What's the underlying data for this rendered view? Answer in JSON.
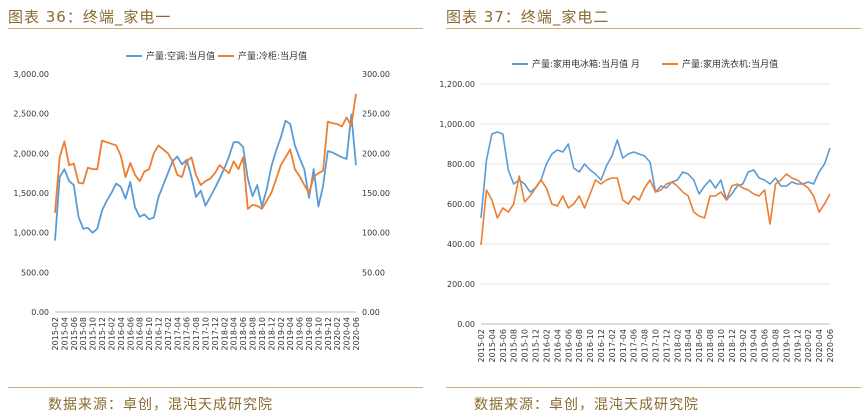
{
  "left": {
    "caption": "图表 36：终端_家电一",
    "source": "数据来源：卓创，混沌天成研究院",
    "chart_data": {
      "type": "line",
      "x": [
        "2015-02",
        "2015-03",
        "2015-04",
        "2015-05",
        "2015-06",
        "2015-07",
        "2015-08",
        "2015-09",
        "2015-10",
        "2015-11",
        "2015-12",
        "2016-01",
        "2016-02",
        "2016-03",
        "2016-04",
        "2016-05",
        "2016-06",
        "2016-07",
        "2016-08",
        "2016-09",
        "2016-10",
        "2016-11",
        "2016-12",
        "2017-01",
        "2017-02",
        "2017-03",
        "2017-04",
        "2017-05",
        "2017-06",
        "2017-07",
        "2017-08",
        "2017-09",
        "2017-10",
        "2017-11",
        "2017-12",
        "2018-01",
        "2018-02",
        "2018-03",
        "2018-04",
        "2018-05",
        "2018-06",
        "2018-07",
        "2018-08",
        "2018-09",
        "2018-10",
        "2018-11",
        "2018-12",
        "2019-01",
        "2019-02",
        "2019-03",
        "2019-04",
        "2019-05",
        "2019-06",
        "2019-07",
        "2019-08",
        "2019-09",
        "2019-10",
        "2019-11",
        "2019-12",
        "2020-01",
        "2020-02",
        "2020-03",
        "2020-04",
        "2020-05",
        "2020-06"
      ],
      "x_tick_labels": [
        "2015-02",
        "2015-04",
        "2015-06",
        "2015-08",
        "2015-10",
        "2015-12",
        "2016-02",
        "2016-04",
        "2016-06",
        "2016-08",
        "2016-10",
        "2016-12",
        "2017-02",
        "2017-04",
        "2017-06",
        "2017-08",
        "2017-10",
        "2017-12",
        "2018-02",
        "2018-04",
        "2018-06",
        "2018-08",
        "2018-10",
        "2018-12",
        "2019-02",
        "2019-04",
        "2019-06",
        "2019-08",
        "2019-10",
        "2019-12",
        "2020-02",
        "2020-04",
        "2020-06"
      ],
      "series": [
        {
          "name": "产量:空调:当月值",
          "axis": "left",
          "color": "#5b9bd5",
          "values": [
            900,
            1700,
            1800,
            1650,
            1600,
            1200,
            1050,
            1060,
            1000,
            1050,
            1280,
            1400,
            1500,
            1620,
            1580,
            1430,
            1640,
            1320,
            1200,
            1230,
            1170,
            1190,
            1450,
            1600,
            1750,
            1900,
            1960,
            1860,
            1920,
            1700,
            1450,
            1530,
            1340,
            1450,
            1560,
            1680,
            1810,
            1960,
            2140,
            2140,
            2080,
            1680,
            1460,
            1600,
            1330,
            1540,
            1830,
            2030,
            2200,
            2410,
            2370,
            2100,
            1940,
            1800,
            1440,
            1800,
            1330,
            1590,
            2030,
            2010,
            1980,
            1950,
            1930,
            2490,
            1850
          ]
        },
        {
          "name": "产量:冷柜:当月值",
          "axis": "right",
          "color": "#ed7d31",
          "values": [
            125,
            195,
            215,
            185,
            187,
            163,
            162,
            182,
            180,
            180,
            216,
            214,
            212,
            210,
            197,
            170,
            188,
            173,
            165,
            177,
            180,
            200,
            210,
            205,
            200,
            190,
            173,
            170,
            190,
            195,
            172,
            160,
            165,
            168,
            175,
            185,
            180,
            175,
            190,
            180,
            195,
            130,
            135,
            134,
            130,
            140,
            150,
            167,
            185,
            195,
            205,
            180,
            171,
            160,
            150,
            170,
            175,
            178,
            240,
            238,
            237,
            234,
            245,
            235,
            275
          ]
        }
      ],
      "left_axis": {
        "min": 0,
        "max": 3000,
        "ticks": [
          "0.00",
          "500.00",
          "1,000.00",
          "1,500.00",
          "2,000.00",
          "2,500.00",
          "3,000.00"
        ]
      },
      "right_axis": {
        "min": 0,
        "max": 300,
        "ticks": [
          "0.00",
          "50.00",
          "100.00",
          "150.00",
          "200.00",
          "250.00",
          "300.00"
        ]
      },
      "legend_position": "top"
    }
  },
  "right": {
    "caption": "图表 37：终端_家电二",
    "source": "数据来源：卓创，混沌天成研究院",
    "chart_data": {
      "type": "line",
      "x": [
        "2015-02",
        "2015-03",
        "2015-04",
        "2015-05",
        "2015-06",
        "2015-07",
        "2015-08",
        "2015-09",
        "2015-10",
        "2015-11",
        "2015-12",
        "2016-01",
        "2016-02",
        "2016-03",
        "2016-04",
        "2016-05",
        "2016-06",
        "2016-07",
        "2016-08",
        "2016-09",
        "2016-10",
        "2016-11",
        "2016-12",
        "2017-01",
        "2017-02",
        "2017-03",
        "2017-04",
        "2017-05",
        "2017-06",
        "2017-07",
        "2017-08",
        "2017-09",
        "2017-10",
        "2017-11",
        "2017-12",
        "2018-01",
        "2018-02",
        "2018-03",
        "2018-04",
        "2018-05",
        "2018-06",
        "2018-07",
        "2018-08",
        "2018-09",
        "2018-10",
        "2018-11",
        "2018-12",
        "2019-01",
        "2019-02",
        "2019-03",
        "2019-04",
        "2019-05",
        "2019-06",
        "2019-07",
        "2019-08",
        "2019-09",
        "2019-10",
        "2019-11",
        "2019-12",
        "2020-01",
        "2020-02",
        "2020-03",
        "2020-04",
        "2020-05",
        "2020-06"
      ],
      "x_tick_labels": [
        "2015-02",
        "2015-04",
        "2015-06",
        "2015-08",
        "2015-10",
        "2015-12",
        "2016-02",
        "2016-04",
        "2016-06",
        "2016-08",
        "2016-10",
        "2016-12",
        "2017-02",
        "2017-04",
        "2017-06",
        "2017-08",
        "2017-10",
        "2017-12",
        "2018-02",
        "2018-04",
        "2018-06",
        "2018-08",
        "2018-10",
        "2018-12",
        "2019-02",
        "2019-04",
        "2019-06",
        "2019-08",
        "2019-10",
        "2019-12",
        "2020-02",
        "2020-04",
        "2020-06"
      ],
      "series": [
        {
          "name": "产量:家用电冰箱:当月值 月",
          "color": "#5b9bd5",
          "values": [
            530,
            820,
            950,
            960,
            950,
            770,
            700,
            720,
            700,
            660,
            680,
            720,
            800,
            850,
            870,
            860,
            900,
            780,
            760,
            800,
            770,
            750,
            720,
            790,
            840,
            920,
            830,
            850,
            860,
            850,
            840,
            810,
            660,
            690,
            680,
            710,
            720,
            760,
            750,
            720,
            650,
            690,
            720,
            680,
            720,
            620,
            650,
            690,
            700,
            760,
            770,
            730,
            720,
            700,
            730,
            690,
            690,
            710,
            700,
            700,
            710,
            700,
            760,
            800,
            880
          ]
        },
        {
          "name": "产量:家用洗衣机:当月值",
          "color": "#ed7d31",
          "values": [
            395,
            670,
            620,
            530,
            580,
            560,
            600,
            740,
            610,
            640,
            680,
            720,
            680,
            600,
            590,
            640,
            580,
            600,
            640,
            580,
            650,
            720,
            700,
            720,
            730,
            730,
            620,
            600,
            640,
            620,
            680,
            720,
            660,
            670,
            700,
            710,
            690,
            660,
            640,
            560,
            540,
            530,
            640,
            640,
            660,
            620,
            690,
            700,
            680,
            670,
            650,
            640,
            670,
            500,
            700,
            720,
            750,
            730,
            720,
            700,
            680,
            640,
            560,
            600,
            650
          ]
        }
      ],
      "left_axis": {
        "min": 0,
        "max": 1200,
        "ticks": [
          "0.00",
          "200.00",
          "400.00",
          "600.00",
          "800.00",
          "1,000.00",
          "1,200.00"
        ]
      },
      "legend_position": "top"
    }
  }
}
